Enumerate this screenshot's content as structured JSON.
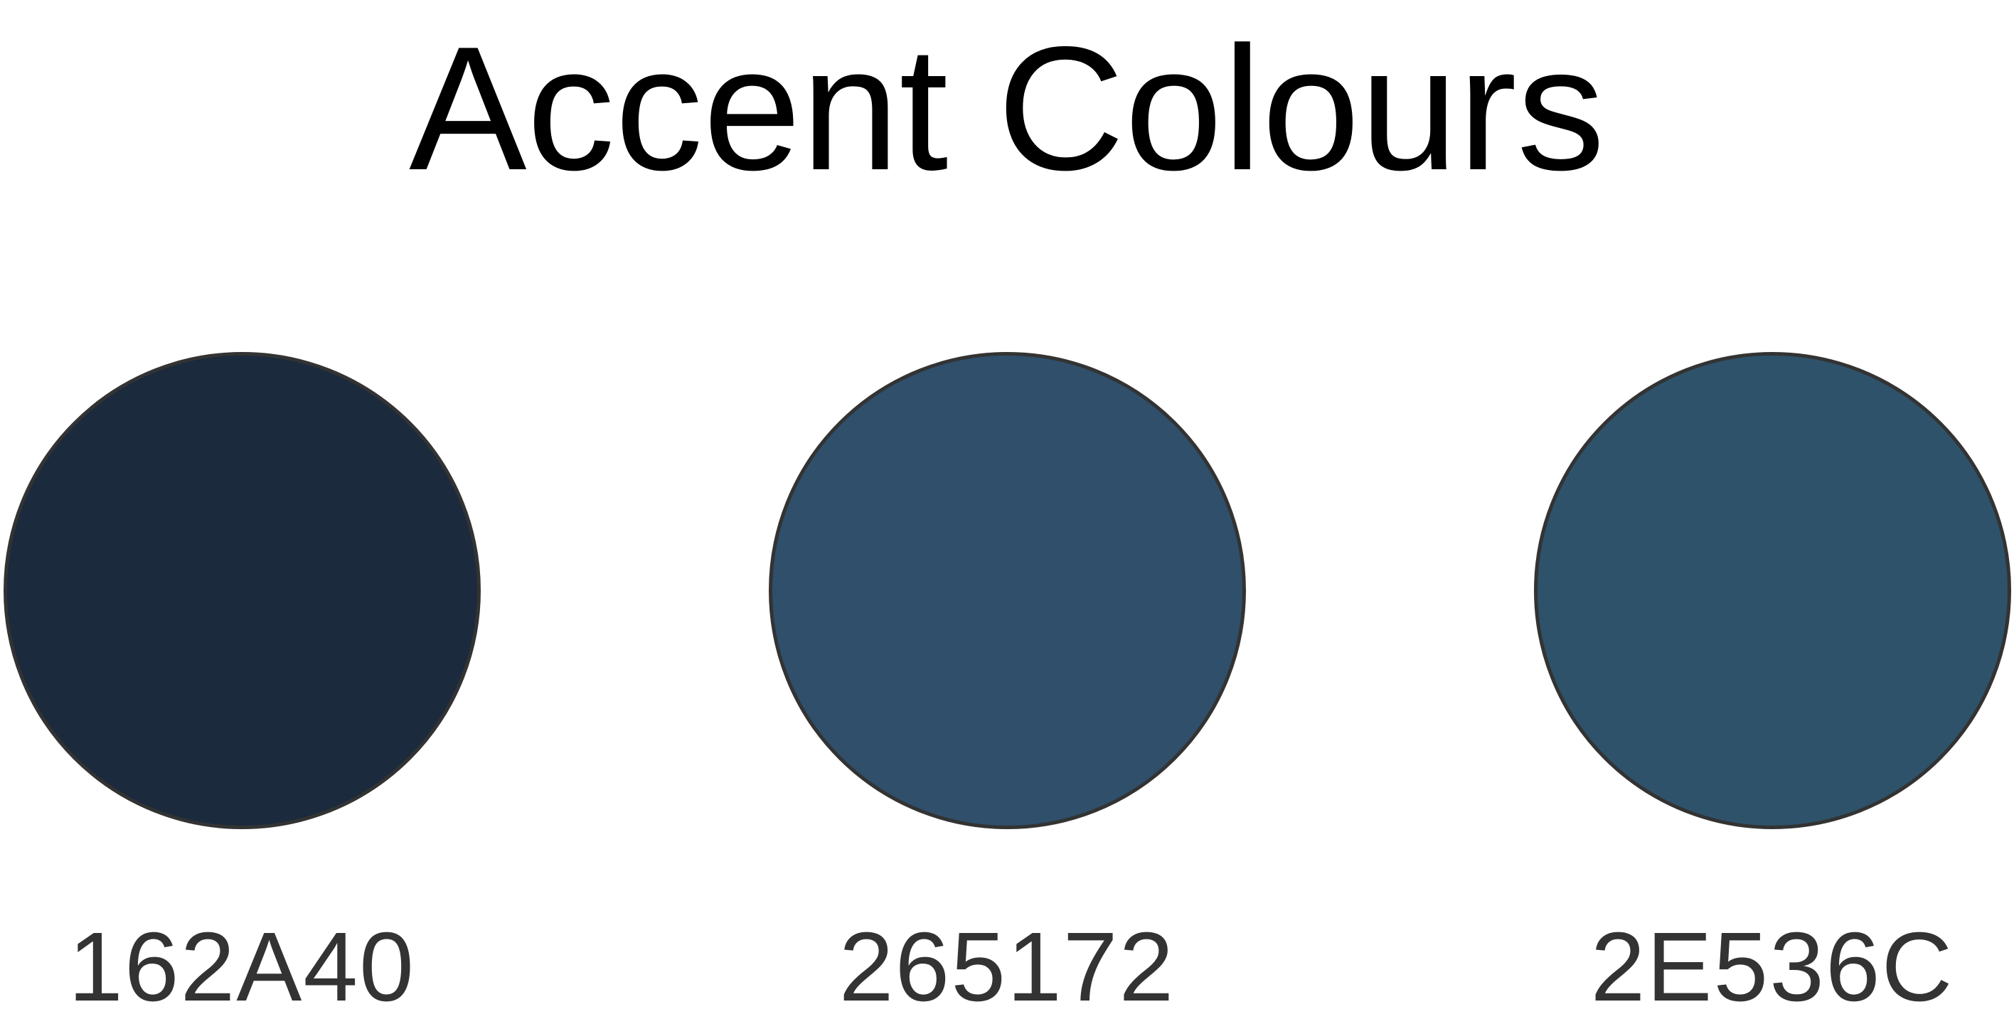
{
  "page": {
    "title": "Accent Colours"
  },
  "swatches": [
    {
      "label": "162A40",
      "color": "#1B2A3D"
    },
    {
      "label": "265172",
      "color": "#2F4F6B"
    },
    {
      "label": "2E536C",
      "color": "#2E526A"
    }
  ],
  "border_color": "#333333"
}
